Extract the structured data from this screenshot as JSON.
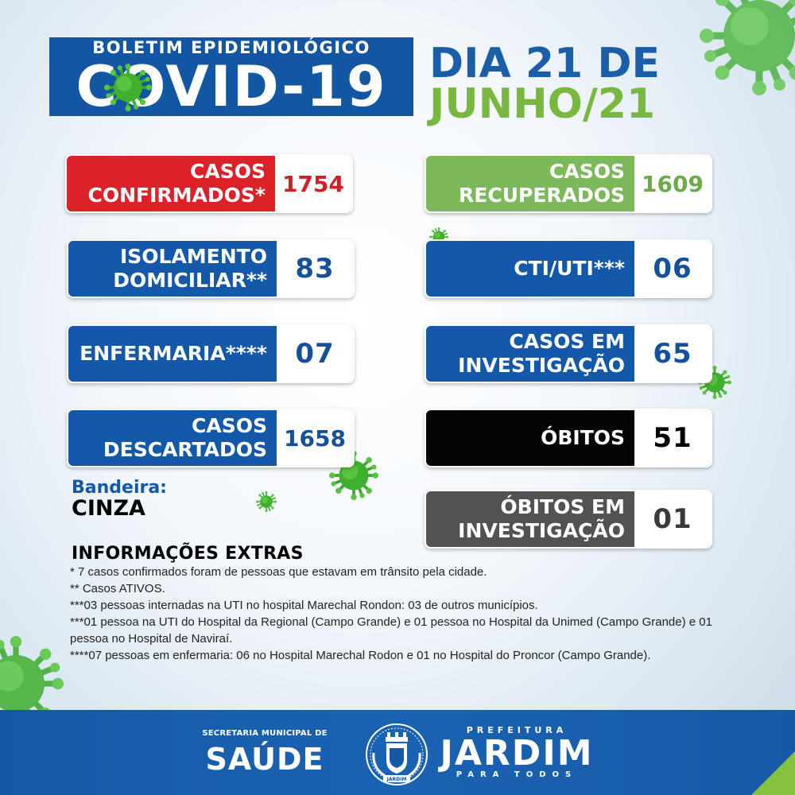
{
  "header": {
    "subtitle": "BOLETIM EPIDEMIOLÓGICO",
    "title": "COVID-19",
    "date_line1": "DIA 21 DE",
    "date_line2": "JUNHO/21"
  },
  "stats": {
    "confirmados": {
      "label": "CASOS\nCONFIRMADOS*",
      "value": "1754",
      "color": "#dc2128"
    },
    "recuperados": {
      "label": "CASOS\nRECUPERADOS",
      "value": "1609",
      "color": "#7bb95a"
    },
    "isolamento": {
      "label": "ISOLAMENTO\nDOMICILIAR**",
      "value": "83",
      "color": "#1459a9"
    },
    "cti_uti": {
      "label": "CTI/UTI***",
      "value": "06",
      "color": "#1459a9"
    },
    "enfermaria": {
      "label": "ENFERMARIA****",
      "value": "07",
      "color": "#1459a9"
    },
    "investigacao": {
      "label": "CASOS EM\nINVESTIGAÇÃO",
      "value": "65",
      "color": "#1459a9"
    },
    "descartados": {
      "label": "CASOS\nDESCARTADOS",
      "value": "1658",
      "color": "#1459a9"
    },
    "obitos": {
      "label": "ÓBITOS",
      "value": "51",
      "color": "#050505"
    },
    "obitos_investigacao": {
      "label": "ÓBITOS EM\nINVESTIGAÇÃO",
      "value": "01",
      "color": "#525252"
    }
  },
  "bandeira": {
    "label": "Bandeira:",
    "value": "CINZA"
  },
  "extras": {
    "title": "INFORMAÇÕES EXTRAS",
    "notes": [
      "* 7 casos confirmados foram de pessoas que estavam em trânsito pela cidade.",
      "** Casos ATIVOS.",
      "***03 pessoas internadas na UTI no hospital Marechal Rondon: 03 de outros municípios.",
      "***01 pessoa na UTI do Hospital da Regional (Campo Grande) e 01 pessoa no Hospital da Unimed (Campo Grande) e 01 pessoa no Hospital de Naviraí.",
      "****07  pessoas em enfermaria: 06 no Hospital Marechal Rodon e 01 no Hospital do Proncor (Campo Grande)."
    ]
  },
  "footer": {
    "secretaria_top": "SECRETARIA MUNICIPAL DE",
    "secretaria_main": "SAÚDE",
    "prefeitura": "PREFEITURA",
    "city": "JARDIM",
    "slogan": "PARA TODOS",
    "crest_text": "JARDIM",
    "crest_icon": "city-coat-of-arms-icon"
  },
  "decor": {
    "virus_icon": "virus-icon",
    "virus_color": "#3fb02e"
  }
}
